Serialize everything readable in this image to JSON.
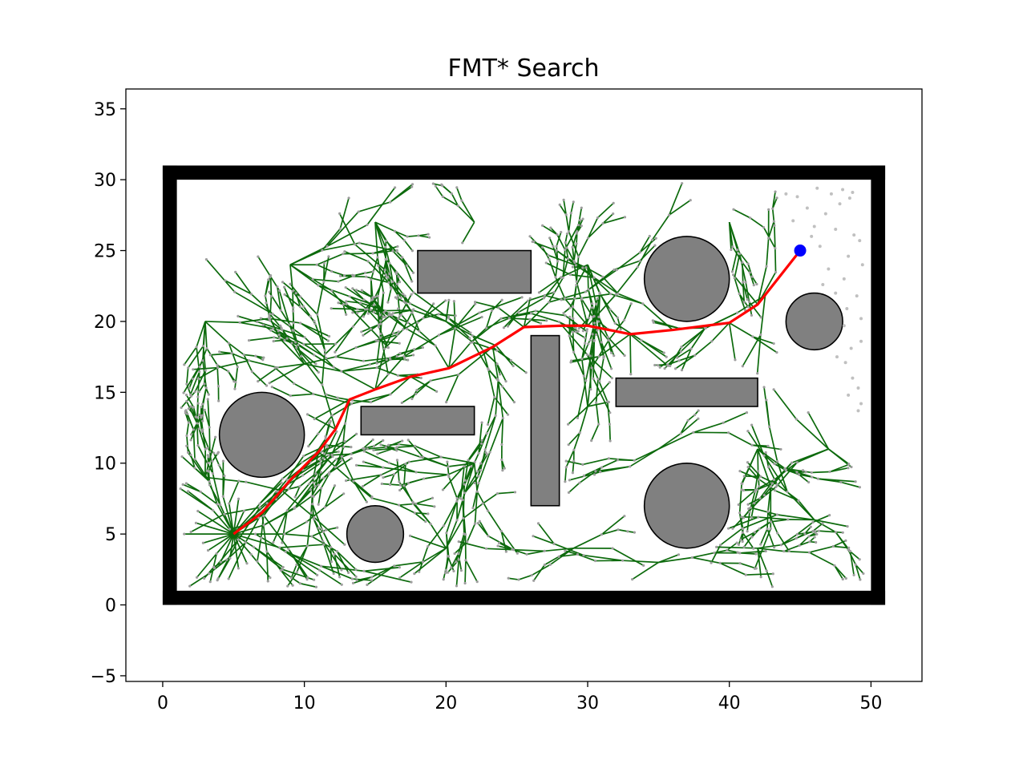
{
  "chart_data": {
    "type": "scatter",
    "title": "FMT* Search",
    "xlabel": "",
    "ylabel": "",
    "xlim": [
      -2.6,
      53.6
    ],
    "ylim": [
      -5.4,
      36.4
    ],
    "x_ticks": [
      0,
      10,
      20,
      30,
      40,
      50
    ],
    "y_ticks": [
      -5,
      0,
      5,
      10,
      15,
      20,
      25,
      30,
      35
    ],
    "x_tick_labels": [
      "0",
      "10",
      "20",
      "30",
      "40",
      "50"
    ],
    "y_tick_labels": [
      "−5",
      "0",
      "5",
      "10",
      "15",
      "20",
      "25",
      "30",
      "35"
    ],
    "grid": false,
    "start": [
      5,
      5
    ],
    "goal": [
      45,
      25
    ],
    "boundary": {
      "x_min": 0,
      "y_min": 0,
      "x_max": 51,
      "y_max": 31,
      "thickness": 1
    },
    "rect_obstacles": [
      {
        "x": 14,
        "y": 12,
        "w": 8,
        "h": 2
      },
      {
        "x": 18,
        "y": 22,
        "w": 8,
        "h": 3
      },
      {
        "x": 26,
        "y": 7,
        "w": 2,
        "h": 12
      },
      {
        "x": 32,
        "y": 14,
        "w": 10,
        "h": 2
      }
    ],
    "circle_obstacles": [
      {
        "x": 7,
        "y": 12,
        "r": 3
      },
      {
        "x": 37,
        "y": 23,
        "r": 3
      },
      {
        "x": 46,
        "y": 20,
        "r": 2
      },
      {
        "x": 15,
        "y": 5,
        "r": 2
      },
      {
        "x": 37,
        "y": 7,
        "r": 3
      }
    ],
    "path": [
      [
        5,
        5
      ],
      [
        7,
        6.5
      ],
      [
        9,
        8.8
      ],
      [
        11,
        10.8
      ],
      [
        12.2,
        12.4
      ],
      [
        13.2,
        14.5
      ],
      [
        15,
        15.2
      ],
      [
        17.5,
        16.1
      ],
      [
        20.2,
        16.7
      ],
      [
        23.3,
        18.2
      ],
      [
        25.5,
        19.6
      ],
      [
        28.2,
        19.7
      ],
      [
        30,
        19.7
      ],
      [
        33,
        19.1
      ],
      [
        36,
        19.4
      ],
      [
        40,
        19.9
      ],
      [
        42,
        21.2
      ],
      [
        43.5,
        23.1
      ],
      [
        45,
        25
      ]
    ],
    "unvisited_samples": [
      [
        44,
        29
      ],
      [
        44.8,
        28.8
      ],
      [
        46.2,
        29.4
      ],
      [
        47.2,
        29
      ],
      [
        48,
        29.3
      ],
      [
        48.7,
        29.1
      ],
      [
        45.5,
        28
      ],
      [
        47.8,
        28.3
      ],
      [
        48.5,
        28.7
      ],
      [
        46.8,
        27.6
      ],
      [
        44.5,
        27.1
      ],
      [
        46,
        26.7
      ],
      [
        47.5,
        26.5
      ],
      [
        48.8,
        26.1
      ],
      [
        45.8,
        26
      ],
      [
        49.2,
        25.7
      ],
      [
        46.4,
        25.3
      ],
      [
        48.4,
        24.6
      ],
      [
        49.4,
        24
      ],
      [
        47,
        23.7
      ],
      [
        48.1,
        23
      ],
      [
        46.6,
        22.6
      ],
      [
        47.5,
        22
      ],
      [
        49,
        21.8
      ],
      [
        48.3,
        20.9
      ],
      [
        49.3,
        20.2
      ],
      [
        48.1,
        19.7
      ],
      [
        49.3,
        18.6
      ],
      [
        48.6,
        18.1
      ],
      [
        47.6,
        17.5
      ],
      [
        48.2,
        17.1
      ],
      [
        48.7,
        16
      ],
      [
        49.1,
        15.3
      ],
      [
        48.4,
        14.8
      ],
      [
        49.3,
        14.2
      ],
      [
        49.1,
        13.7
      ]
    ],
    "colors": {
      "tree_edges": "#0c6a0c",
      "tree_nodes": "#9e9e9e",
      "path": "#ff0000",
      "goal": "#0000ff",
      "obstacle_fill": "#808080",
      "boundary": "#000000",
      "unvisited_samples": "#c0c0c0"
    }
  }
}
